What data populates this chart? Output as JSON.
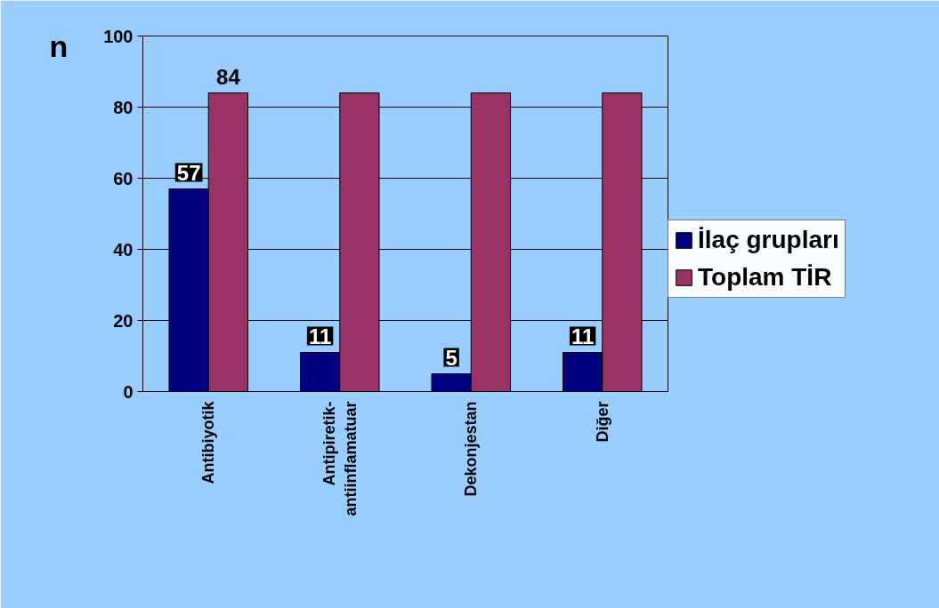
{
  "chart_data": {
    "type": "bar",
    "ylabel": "n",
    "categories": [
      "Antibiyotik",
      "Antipiretik-\nantiinflamatuar",
      "Dekonjestan",
      "Diğer"
    ],
    "series": [
      {
        "name": "İlaç grupları",
        "color": "#000080",
        "values": [
          57,
          11,
          5,
          11
        ],
        "value_labels": [
          "57",
          "11",
          "5",
          "11"
        ]
      },
      {
        "name": "Toplam TİR",
        "color": "#993366",
        "values": [
          84,
          84,
          84,
          84
        ],
        "value_labels": [
          "84",
          null,
          null,
          null
        ]
      }
    ],
    "ylim": [
      0,
      100
    ],
    "yticks": [
      0,
      20,
      40,
      60,
      80,
      100
    ],
    "grid": "y",
    "legend": "right"
  }
}
